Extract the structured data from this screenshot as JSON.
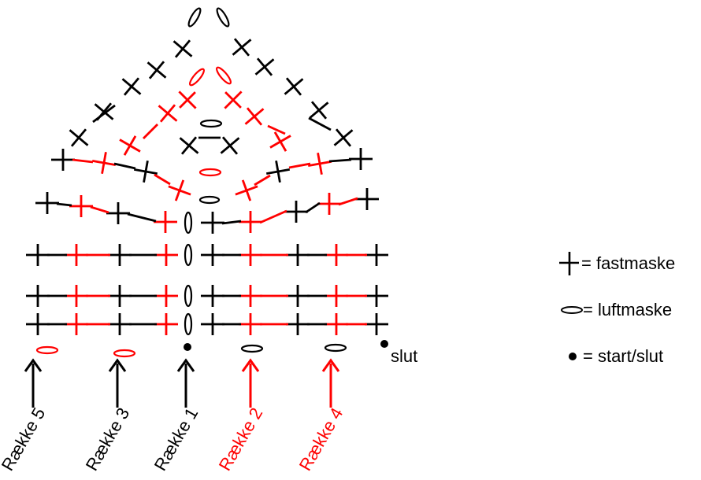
{
  "colors": {
    "black": "#000000",
    "red": "#ff0000"
  },
  "legend": {
    "items": [
      {
        "symbol": "cross",
        "text": "= fastmaske"
      },
      {
        "symbol": "oval",
        "text": "= luftmaske"
      },
      {
        "symbol": "dot",
        "text": "= start/slut"
      }
    ]
  },
  "end_label": "slut",
  "row_labels": [
    {
      "text": "Række 5",
      "color": "black"
    },
    {
      "text": "Række 3",
      "color": "black"
    },
    {
      "text": "Række 1",
      "color": "black"
    },
    {
      "text": "Række 2",
      "color": "red"
    },
    {
      "text": "Række 4",
      "color": "red"
    }
  ]
}
